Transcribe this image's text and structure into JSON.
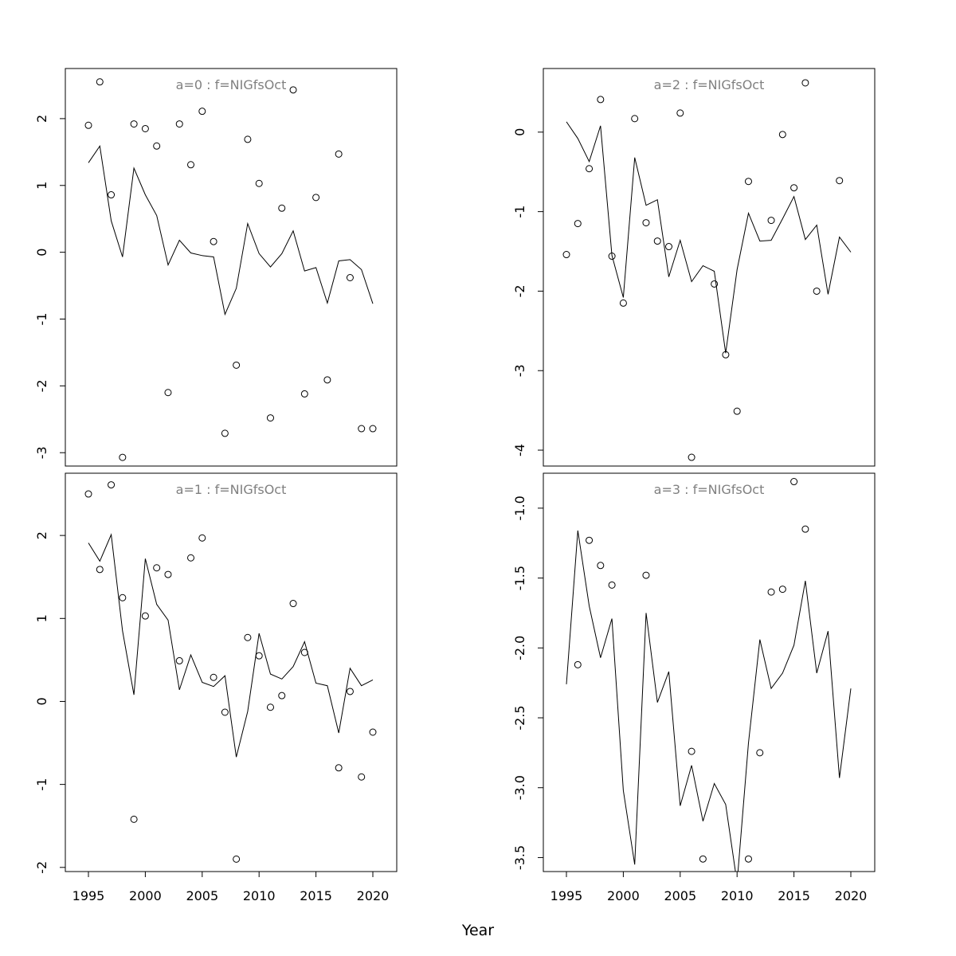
{
  "chart_data": {
    "type": "scatter",
    "xlabel": "Year",
    "marker": "open-circle",
    "line_color": "#000000",
    "title_color": "#808080",
    "panels": [
      {
        "id": "a0",
        "title": "a=0  :  f=NIGfsOct",
        "xlim": [
          1995,
          2020
        ],
        "ylim": [
          -3.2,
          2.75
        ],
        "yticks": [
          2,
          1,
          0,
          -1,
          -2,
          -3
        ],
        "ytick_labels": [
          "2",
          "1",
          "0",
          "-1",
          "-2",
          "-3"
        ],
        "xticks": [],
        "xtick_labels": [],
        "fitted": {
          "x": [
            1995,
            1996,
            1997,
            1998,
            1999,
            2000,
            2001,
            2002,
            2003,
            2004,
            2005,
            2006,
            2007,
            2008,
            2009,
            2010,
            2011,
            2012,
            2013,
            2014,
            2015,
            2016,
            2017,
            2018,
            2019,
            2020
          ],
          "y": [
            1.34,
            1.59,
            0.47,
            -0.07,
            1.26,
            0.86,
            0.55,
            -0.19,
            0.18,
            -0.01,
            -0.05,
            -0.07,
            -0.93,
            -0.54,
            0.43,
            -0.02,
            -0.22,
            -0.02,
            0.32,
            -0.28,
            -0.23,
            -0.76,
            -0.13,
            -0.11,
            -0.26,
            -0.77
          ]
        },
        "observed": {
          "x": [
            1995,
            1996,
            1997,
            1998,
            1999,
            2000,
            2001,
            2002,
            2003,
            2004,
            2005,
            2006,
            2007,
            2008,
            2009,
            2010,
            2011,
            2012,
            2013,
            2014,
            2015,
            2016,
            2017,
            2018,
            2019,
            2020
          ],
          "y": [
            1.9,
            2.55,
            0.86,
            -3.07,
            1.92,
            1.85,
            1.59,
            -2.1,
            1.92,
            1.31,
            2.11,
            0.16,
            -2.71,
            -1.69,
            1.69,
            1.03,
            -2.48,
            0.66,
            2.43,
            -2.12,
            0.82,
            -1.91,
            1.47,
            -0.38,
            -2.64,
            -2.64
          ]
        }
      },
      {
        "id": "a2",
        "title": "a=2  :  f=NIGfsOct",
        "xlim": [
          1995,
          2020
        ],
        "ylim": [
          -4.2,
          0.8
        ],
        "yticks": [
          0,
          -1,
          -2,
          -3,
          -4
        ],
        "ytick_labels": [
          "0",
          "-1",
          "-2",
          "-3",
          "-4"
        ],
        "xticks": [],
        "xtick_labels": [],
        "fitted": {
          "x": [
            1995,
            1996,
            1997,
            1998,
            1999,
            2000,
            2001,
            2002,
            2003,
            2004,
            2005,
            2006,
            2007,
            2008,
            2009,
            2010,
            2011,
            2012,
            2013,
            2014,
            2015,
            2016,
            2017,
            2018,
            2019,
            2020
          ],
          "y": [
            0.13,
            -0.08,
            -0.37,
            0.08,
            -1.55,
            -2.08,
            -0.32,
            -0.92,
            -0.85,
            -1.82,
            -1.36,
            -1.88,
            -1.68,
            -1.75,
            -2.78,
            -1.73,
            -1.02,
            -1.37,
            -1.36,
            -1.09,
            -0.81,
            -1.35,
            -1.17,
            -2.04,
            -1.32,
            -1.51
          ]
        },
        "observed": {
          "x": [
            1995,
            1996,
            1997,
            1998,
            1999,
            2000,
            2001,
            2002,
            2003,
            2004,
            2005,
            2006,
            2008,
            2009,
            2010,
            2011,
            2013,
            2014,
            2015,
            2016,
            2017,
            2019
          ],
          "y": [
            -1.54,
            -1.15,
            -0.46,
            0.41,
            -1.56,
            -2.15,
            0.17,
            -1.14,
            -1.37,
            -1.44,
            0.24,
            -4.09,
            -1.91,
            -2.8,
            -3.51,
            -0.62,
            -1.11,
            -0.03,
            -0.7,
            0.62,
            -2.0,
            -0.61
          ]
        }
      },
      {
        "id": "a1",
        "title": "a=1  :  f=NIGfsOct",
        "xlim": [
          1995,
          2020
        ],
        "ylim": [
          -2.05,
          2.75
        ],
        "yticks": [
          2,
          1,
          0,
          -1,
          -2
        ],
        "ytick_labels": [
          "2",
          "1",
          "0",
          "-1",
          "-2"
        ],
        "xticks": [
          1995,
          2000,
          2005,
          2010,
          2015,
          2020
        ],
        "xtick_labels": [
          "1995",
          "2000",
          "2005",
          "2010",
          "2015",
          "2020"
        ],
        "fitted": {
          "x": [
            1995,
            1996,
            1997,
            1998,
            1999,
            2000,
            2001,
            2002,
            2003,
            2004,
            2005,
            2006,
            2007,
            2008,
            2009,
            2010,
            2011,
            2012,
            2013,
            2014,
            2015,
            2016,
            2017,
            2018,
            2019,
            2020
          ],
          "y": [
            1.91,
            1.69,
            2.01,
            0.85,
            0.08,
            1.72,
            1.17,
            0.98,
            0.14,
            0.56,
            0.23,
            0.18,
            0.31,
            -0.67,
            -0.12,
            0.82,
            0.33,
            0.27,
            0.42,
            0.72,
            0.22,
            0.19,
            -0.38,
            0.4,
            0.19,
            0.26
          ]
        },
        "observed": {
          "x": [
            1995,
            1996,
            1997,
            1998,
            1999,
            2000,
            2001,
            2002,
            2003,
            2004,
            2005,
            2006,
            2007,
            2008,
            2009,
            2010,
            2011,
            2012,
            2013,
            2014,
            2017,
            2018,
            2019,
            2020
          ],
          "y": [
            2.5,
            1.59,
            2.61,
            1.25,
            -1.42,
            1.03,
            1.61,
            1.53,
            0.49,
            1.73,
            1.97,
            0.29,
            -0.13,
            -1.9,
            0.77,
            0.55,
            -0.07,
            0.07,
            1.18,
            0.59,
            -0.8,
            0.12,
            -0.91,
            -0.37
          ]
        }
      },
      {
        "id": "a3",
        "title": "a=3  :  f=NIGfsOct",
        "xlim": [
          1995,
          2020
        ],
        "ylim": [
          -3.6,
          -0.75
        ],
        "yticks": [
          -1.0,
          -1.5,
          -2.0,
          -2.5,
          -3.0,
          -3.5
        ],
        "ytick_labels": [
          "-1.0",
          "-1.5",
          "-2.0",
          "-2.5",
          "-3.0",
          "-3.5"
        ],
        "xticks": [
          1995,
          2000,
          2005,
          2010,
          2015,
          2020
        ],
        "xtick_labels": [
          "1995",
          "2000",
          "2005",
          "2010",
          "2015",
          "2020"
        ],
        "fitted": {
          "x": [
            1995,
            1996,
            1997,
            1998,
            1999,
            2000,
            2001,
            2002,
            2003,
            2004,
            2005,
            2006,
            2007,
            2008,
            2009,
            2010,
            2011,
            2012,
            2013,
            2014,
            2015,
            2016,
            2017,
            2018,
            2019,
            2020
          ],
          "y": [
            -2.26,
            -1.16,
            -1.7,
            -2.07,
            -1.79,
            -3.02,
            -3.55,
            -1.75,
            -2.39,
            -2.17,
            -3.13,
            -2.84,
            -3.24,
            -2.97,
            -3.12,
            -3.68,
            -2.68,
            -1.94,
            -2.29,
            -2.18,
            -1.98,
            -1.52,
            -2.18,
            -1.88,
            -2.93,
            -2.29
          ]
        },
        "observed": {
          "x": [
            1996,
            1997,
            1998,
            1999,
            2002,
            2006,
            2007,
            2011,
            2012,
            2013,
            2014,
            2015,
            2016
          ],
          "y": [
            -2.12,
            -1.23,
            -1.41,
            -1.55,
            -1.48,
            -2.74,
            -3.51,
            -3.51,
            -2.75,
            -1.6,
            -1.58,
            -0.81,
            -1.15
          ]
        }
      }
    ]
  }
}
